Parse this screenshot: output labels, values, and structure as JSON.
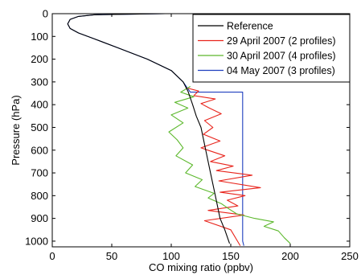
{
  "chart_data": {
    "type": "line",
    "xlabel": "CO mixing ratio (ppbv)",
    "ylabel": "Pressure (hPa)",
    "xlim": [
      0,
      250
    ],
    "ylim": [
      1025,
      0
    ],
    "y_axis_inverted": true,
    "grid": false,
    "legend_position": "top-right",
    "xticks": [
      "0",
      "50",
      "100",
      "150",
      "200",
      "250"
    ],
    "yticks": [
      "0",
      "100",
      "200",
      "300",
      "400",
      "500",
      "600",
      "700",
      "800",
      "900",
      "1000"
    ],
    "series": [
      {
        "name": "Reference",
        "color": "#000000",
        "x": [
          95,
          35,
          22,
          15,
          13,
          15,
          22,
          35,
          55,
          80,
          100,
          110,
          114,
          116,
          118,
          121,
          125,
          129,
          133,
          137,
          141,
          145,
          149
        ],
        "y": [
          0,
          5,
          12,
          25,
          45,
          65,
          85,
          110,
          150,
          200,
          250,
          300,
          340,
          370,
          400,
          450,
          500,
          600,
          700,
          800,
          900,
          950,
          1010
        ]
      },
      {
        "name": "29 April 2007 (2 profiles)",
        "color": "#e8241c",
        "x": [
          112,
          123,
          119,
          137,
          125,
          132,
          142,
          128,
          135,
          127,
          141,
          125,
          145,
          133,
          152,
          138,
          168,
          140,
          175,
          141,
          162,
          147,
          156,
          131,
          161,
          128,
          150,
          158
        ],
        "y": [
          325,
          340,
          360,
          375,
          395,
          415,
          440,
          470,
          500,
          530,
          560,
          590,
          625,
          650,
          670,
          690,
          710,
          735,
          765,
          785,
          800,
          820,
          845,
          865,
          885,
          910,
          950,
          1020
        ]
      },
      {
        "name": "30 April 2007 (4 profiles)",
        "color": "#5cb82c",
        "x": [
          116,
          108,
          119,
          103,
          114,
          100,
          110,
          98,
          105,
          110,
          104,
          118,
          112,
          126,
          120,
          136,
          131,
          142,
          149,
          155,
          170,
          186,
          178,
          190,
          195,
          200
        ],
        "y": [
          320,
          345,
          365,
          390,
          415,
          445,
          480,
          520,
          555,
          590,
          625,
          665,
          700,
          730,
          760,
          790,
          810,
          835,
          860,
          880,
          900,
          915,
          935,
          955,
          985,
          1010
        ]
      },
      {
        "name": "04 May 2007  (3 profiles)",
        "color": "#1f3fbf",
        "x": [
          95,
          35,
          22,
          15,
          13,
          15,
          22,
          35,
          55,
          80,
          100,
          110,
          114,
          116,
          160,
          160,
          161
        ],
        "y": [
          0,
          5,
          12,
          25,
          45,
          65,
          85,
          110,
          150,
          200,
          250,
          300,
          330,
          345,
          345,
          1000,
          1020
        ]
      }
    ]
  }
}
